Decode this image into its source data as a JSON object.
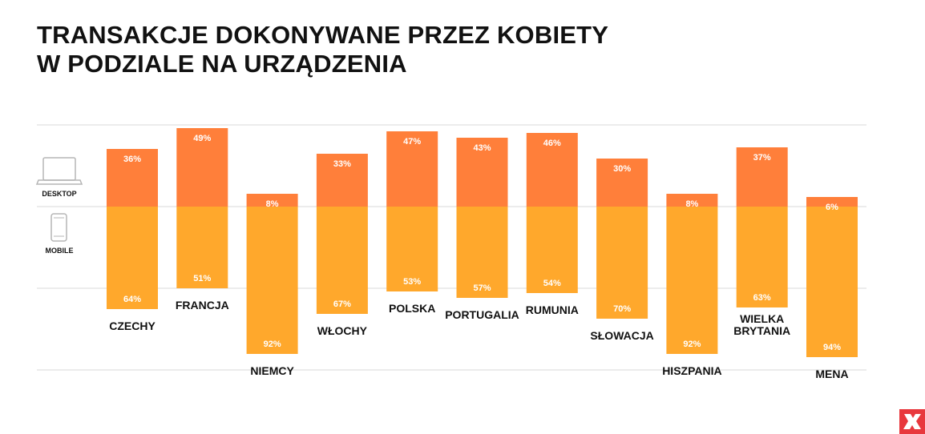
{
  "title": {
    "line1": "TRANSAKCJE DOKONYWANE PRZEZ KOBIETY",
    "line2": "W PODZIALE NA URZĄDZENIA"
  },
  "legend": {
    "desktop_label": "DESKTOP",
    "mobile_label": "MOBILE",
    "desktop_icon": "laptop-icon",
    "mobile_icon": "smartphone-icon"
  },
  "colors": {
    "desktop": "#FF7F3A",
    "mobile": "#FFA82C",
    "grid": "#d9d9d9",
    "logo": "#E8383D"
  },
  "logo": {
    "icon": "brand-logo-icon"
  },
  "chart_data": {
    "type": "bar",
    "stacked": true,
    "categories": [
      "CZECHY",
      "FRANCJA",
      "NIEMCY",
      "WŁOCHY",
      "POLSKA",
      "PORTUGALIA",
      "RUMUNIA",
      "SŁOWACJA",
      "HISZPANIA",
      "WIELKA BRYTANIA",
      "MENA"
    ],
    "series": [
      {
        "name": "DESKTOP",
        "values": [
          36,
          49,
          8,
          33,
          47,
          43,
          46,
          30,
          8,
          37,
          6
        ]
      },
      {
        "name": "MOBILE",
        "values": [
          64,
          51,
          92,
          67,
          53,
          57,
          54,
          70,
          92,
          63,
          94
        ]
      }
    ],
    "value_labels": {
      "desktop": [
        "36%",
        "49%",
        "8%",
        "33%",
        "47%",
        "43%",
        "46%",
        "30%",
        "8%",
        "37%",
        "6%"
      ],
      "mobile": [
        "64%",
        "51%",
        "92%",
        "67%",
        "53%",
        "57%",
        "54%",
        "70%",
        "92%",
        "63%",
        "94%"
      ]
    },
    "ylim": [
      0,
      100
    ],
    "grid": true
  }
}
